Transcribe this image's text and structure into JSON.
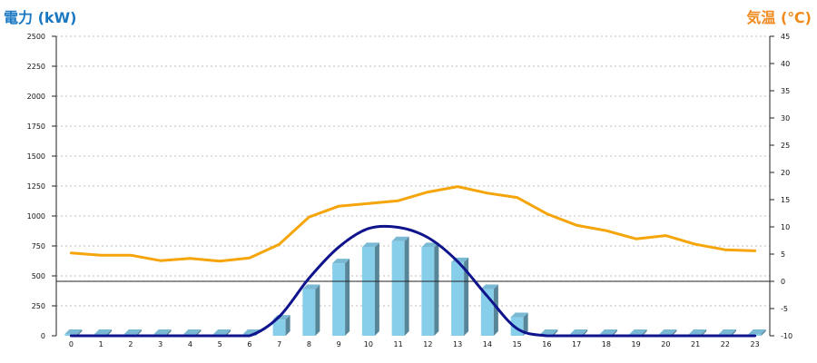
{
  "chart_data": {
    "type": "bar",
    "left_axis_title": "電力 (kW)",
    "right_axis_title": "気温 (℃)",
    "left_axis_title_color": "#1a78c2",
    "right_axis_title_color": "#f08a1e",
    "categories": [
      "0",
      "1",
      "2",
      "3",
      "4",
      "5",
      "6",
      "7",
      "8",
      "9",
      "10",
      "11",
      "12",
      "13",
      "14",
      "15",
      "16",
      "17",
      "18",
      "19",
      "20",
      "21",
      "22",
      "23"
    ],
    "y_left": {
      "min": 0,
      "max": 2500,
      "ticks": [
        0,
        250,
        500,
        750,
        1000,
        1250,
        1500,
        1750,
        2000,
        2250,
        2500
      ]
    },
    "y_right": {
      "min": -10,
      "max": 45,
      "ticks": [
        -10,
        -5,
        0,
        5,
        10,
        15,
        20,
        25,
        30,
        35,
        40,
        45
      ]
    },
    "grid": true,
    "reference_line": {
      "axis": "right",
      "value": 0
    },
    "series": [
      {
        "type": "bar",
        "axis": "left",
        "color": "#87ceeb",
        "values": [
          15,
          15,
          15,
          15,
          15,
          15,
          15,
          135,
          390,
          605,
          740,
          790,
          740,
          615,
          390,
          155,
          15,
          15,
          15,
          15,
          15,
          15,
          15,
          15
        ]
      },
      {
        "type": "line",
        "axis": "left",
        "color": "#10148c",
        "smooth": true,
        "values": [
          0,
          0,
          0,
          0,
          0,
          0,
          0,
          160,
          480,
          740,
          895,
          905,
          820,
          620,
          330,
          60,
          0,
          0,
          0,
          0,
          0,
          0,
          0,
          0
        ]
      },
      {
        "type": "line",
        "axis": "right",
        "color": "#f5a50a",
        "values": [
          5.2,
          4.8,
          4.8,
          3.8,
          4.2,
          3.7,
          4.3,
          6.8,
          11.8,
          13.8,
          14.3,
          14.8,
          16.4,
          17.4,
          16.2,
          15.4,
          12.4,
          10.3,
          9.3,
          7.8,
          8.4,
          6.8,
          5.8,
          5.6
        ]
      }
    ]
  }
}
